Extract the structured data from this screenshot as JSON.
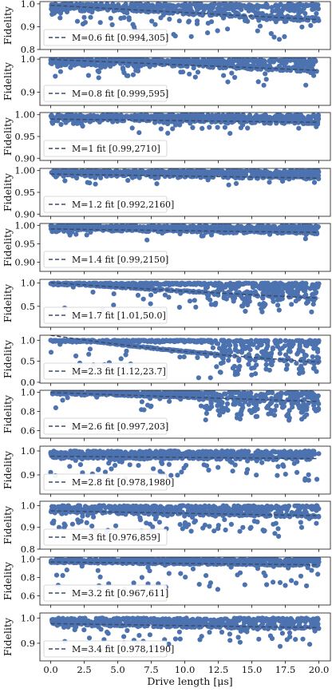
{
  "figure": {
    "xlabel": "Drive length [μs]",
    "ylabel": "Fidelity",
    "xticks": [
      "0.0",
      "2.5",
      "5.0",
      "7.5",
      "10.0",
      "12.5",
      "15.0",
      "17.5",
      "20.0"
    ],
    "xtick_values": [
      0,
      2.5,
      5,
      7.5,
      10,
      12.5,
      15,
      17.5,
      20
    ],
    "xlim": [
      -0.8,
      20.8
    ],
    "point_color": "#4c72b0",
    "fit_color": "#3b4a6b"
  },
  "chart_data": [
    {
      "type": "scatter",
      "legend": "M=0.6 fit [0.994,305]",
      "ylim": [
        0.8,
        1.01
      ],
      "yticks": [
        "1.0",
        "0.9",
        "0.8"
      ],
      "ytick_values": [
        1.0,
        0.9,
        0.8
      ],
      "fit": {
        "a": 0.994,
        "T": 305
      },
      "spread": 0.04,
      "outliers": 0.12,
      "dip_strength": 0.5
    },
    {
      "type": "scatter",
      "legend": "M=0.8 fit [0.999,595]",
      "ylim": [
        0.86,
        1.005
      ],
      "yticks": [
        "1.0",
        "0.9"
      ],
      "ytick_values": [
        1.0,
        0.9
      ],
      "fit": {
        "a": 0.999,
        "T": 595
      },
      "spread": 0.025,
      "outliers": 0.06,
      "dip_strength": 0.4
    },
    {
      "type": "scatter",
      "legend": "M=1 fit [0.99,2710]",
      "ylim": [
        0.895,
        1.005
      ],
      "yticks": [
        "1.00",
        "0.95",
        "0.90"
      ],
      "ytick_values": [
        1.0,
        0.95,
        0.9
      ],
      "fit": {
        "a": 0.99,
        "T": 2710
      },
      "spread": 0.02,
      "outliers": 0.05,
      "dip_strength": 0.3
    },
    {
      "type": "scatter",
      "legend": "M=1.2 fit [0.992,2160]",
      "ylim": [
        0.895,
        1.005
      ],
      "yticks": [
        "1.00",
        "0.95",
        "0.90"
      ],
      "ytick_values": [
        1.0,
        0.95,
        0.9
      ],
      "fit": {
        "a": 0.992,
        "T": 2160
      },
      "spread": 0.015,
      "outliers": 0.04,
      "dip_strength": 0.2
    },
    {
      "type": "scatter",
      "legend": "M=1.4 fit [0.99,2150]",
      "ylim": [
        0.875,
        1.005
      ],
      "yticks": [
        "1.00",
        "0.95",
        "0.90"
      ],
      "ytick_values": [
        1.0,
        0.95,
        0.9
      ],
      "fit": {
        "a": 0.99,
        "T": 2150
      },
      "spread": 0.02,
      "outliers": 0.04,
      "dip_strength": 0.2
    },
    {
      "type": "scatter",
      "legend": "M=1.7 fit [1.01,50.0]",
      "ylim": [
        0.05,
        1.08
      ],
      "yticks": [
        "1.0",
        "0.5"
      ],
      "ytick_values": [
        1.0,
        0.5
      ],
      "fit": {
        "a": 1.01,
        "T": 50.0
      },
      "spread": 0.05,
      "outliers": 0.05,
      "dip_strength": 0.6,
      "osc_start": 11.5,
      "osc_amp": 0.55
    },
    {
      "type": "scatter",
      "legend": "M=2.3 fit [1.12,23.7]",
      "ylim": [
        -0.02,
        1.12
      ],
      "yticks": [
        "1.0",
        "0.5",
        "0.0"
      ],
      "ytick_values": [
        1.0,
        0.5,
        0.0
      ],
      "fit": {
        "a": 1.12,
        "T": 23.7
      },
      "spread": 0.05,
      "outliers": 0.04,
      "dip_strength": 0.6,
      "osc_start": 12.0,
      "osc_amp": 0.75
    },
    {
      "type": "scatter",
      "legend": "M=2.6 fit [0.997,203]",
      "ylim": [
        0.52,
        1.02
      ],
      "yticks": [
        "1.0",
        "0.8",
        "0.6"
      ],
      "ytick_values": [
        1.0,
        0.8,
        0.6
      ],
      "fit": {
        "a": 0.997,
        "T": 203
      },
      "spread": 0.03,
      "outliers": 0.05,
      "dip_strength": 0.4,
      "osc_start": 11.0,
      "osc_amp": 0.25
    },
    {
      "type": "scatter",
      "legend": "M=2.8 fit [0.978,1980]",
      "ylim": [
        0.82,
        1.02
      ],
      "yticks": [
        "1.0",
        "0.9"
      ],
      "ytick_values": [
        1.0,
        0.9
      ],
      "fit": {
        "a": 0.978,
        "T": 1980
      },
      "spread": 0.035,
      "outliers": 0.1,
      "dip_strength": 0.5
    },
    {
      "type": "scatter",
      "legend": "M=3 fit [0.976,859]",
      "ylim": [
        0.8,
        1.02
      ],
      "yticks": [
        "1.0",
        "0.9",
        "0.8"
      ],
      "ytick_values": [
        1.0,
        0.9,
        0.8
      ],
      "fit": {
        "a": 0.976,
        "T": 859
      },
      "spread": 0.04,
      "outliers": 0.12,
      "dip_strength": 0.5
    },
    {
      "type": "scatter",
      "legend": "M=3.2 fit [0.967,611]",
      "ylim": [
        0.5,
        1.02
      ],
      "yticks": [
        "1.0",
        "0.8",
        "0.6"
      ],
      "ytick_values": [
        1.0,
        0.8,
        0.6
      ],
      "fit": {
        "a": 0.967,
        "T": 611
      },
      "spread": 0.04,
      "outliers": 0.08,
      "dip_strength": 0.6
    },
    {
      "type": "scatter",
      "legend": "M=3.4 fit [0.978,1190]",
      "ylim": [
        0.83,
        1.02
      ],
      "yticks": [
        "1.0",
        "0.9"
      ],
      "ytick_values": [
        1.0,
        0.9
      ],
      "fit": {
        "a": 0.978,
        "T": 1190
      },
      "spread": 0.035,
      "outliers": 0.1,
      "dip_strength": 0.5
    }
  ]
}
